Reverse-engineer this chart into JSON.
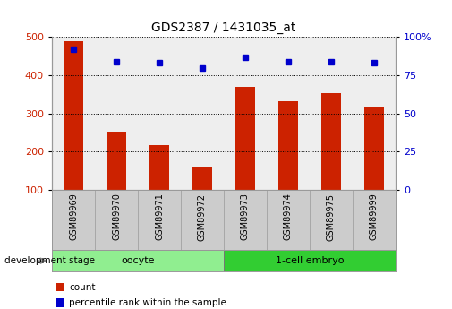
{
  "title": "GDS2387 / 1431035_at",
  "samples": [
    "GSM89969",
    "GSM89970",
    "GSM89971",
    "GSM89972",
    "GSM89973",
    "GSM89974",
    "GSM89975",
    "GSM89999"
  ],
  "counts": [
    490,
    253,
    217,
    160,
    370,
    333,
    353,
    318
  ],
  "percentiles": [
    92,
    84,
    83,
    80,
    87,
    84,
    84,
    83
  ],
  "groups": [
    {
      "label": "oocyte",
      "start": 0,
      "end": 4,
      "color": "#90ee90"
    },
    {
      "label": "1-cell embryo",
      "start": 4,
      "end": 8,
      "color": "#32cd32"
    }
  ],
  "bar_color": "#cc2200",
  "dot_color": "#0000cc",
  "ylim_left": [
    100,
    500
  ],
  "ylim_right": [
    0,
    100
  ],
  "yticks_left": [
    100,
    200,
    300,
    400,
    500
  ],
  "yticks_right": [
    0,
    25,
    50,
    75,
    100
  ],
  "ytick_labels_right": [
    "0",
    "25",
    "50",
    "75",
    "100%"
  ],
  "bg_color": "#eeeeee",
  "xlabel_area_color": "#cccccc",
  "development_stage_label": "development stage",
  "legend_count_label": "count",
  "legend_percentile_label": "percentile rank within the sample"
}
